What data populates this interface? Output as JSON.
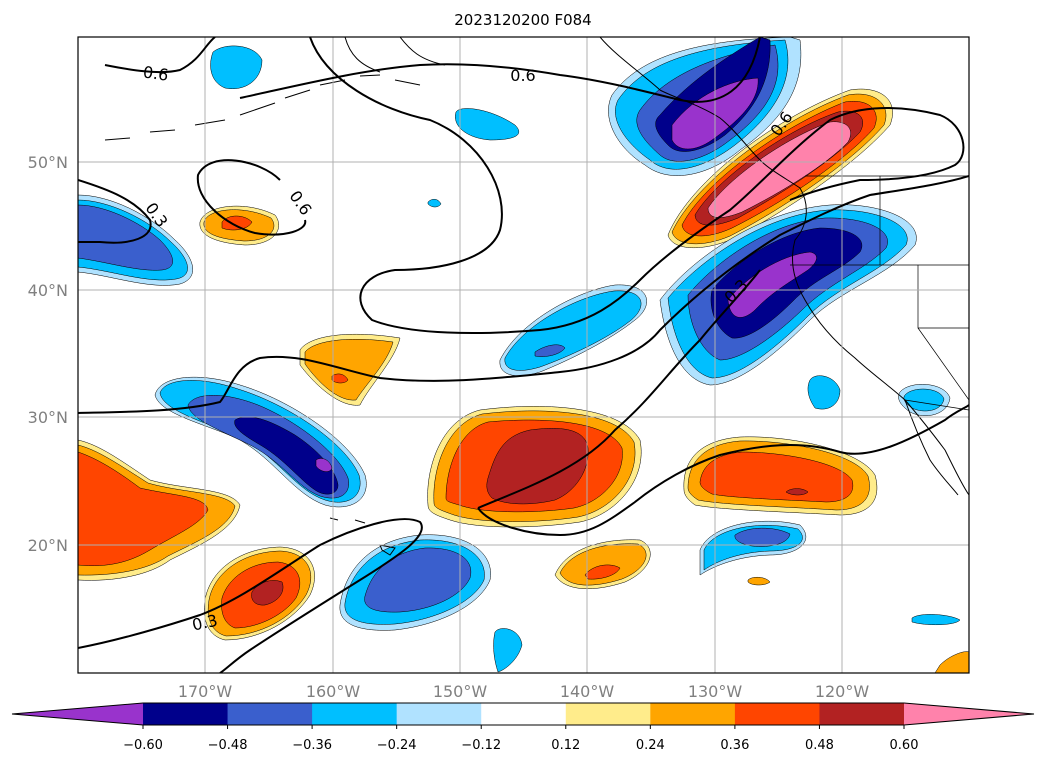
{
  "title": "2023120200 F084",
  "map": {
    "lon_range": [
      -180,
      -110
    ],
    "lat_range": [
      10,
      60
    ],
    "grid": true,
    "lon_ticks": [
      "170°W",
      "160°W",
      "150°W",
      "140°W",
      "130°W",
      "120°W"
    ],
    "lat_ticks": [
      "50°N",
      "40°N",
      "30°N",
      "20°N"
    ],
    "contour_labels": [
      "0.6",
      "0.6",
      "0.6",
      "0.6",
      "0.3",
      "0.3",
      "0.3"
    ]
  },
  "colorbar": {
    "orientation": "horizontal",
    "extend": "both",
    "levels": [
      -0.6,
      -0.48,
      -0.36,
      -0.24,
      -0.12,
      0.12,
      0.24,
      0.36,
      0.48,
      0.6
    ],
    "tick_labels": [
      "−0.60",
      "−0.48",
      "−0.36",
      "−0.24",
      "−0.12",
      "0.12",
      "0.24",
      "0.36",
      "0.48",
      "0.60"
    ],
    "colors": [
      "#9933cc",
      "#00008b",
      "#3a5fcd",
      "#00bfff",
      "#b0e2ff",
      "#ffffff",
      "#ffec8b",
      "#ffa500",
      "#ff4500",
      "#b22222",
      "#ff82ab"
    ]
  }
}
